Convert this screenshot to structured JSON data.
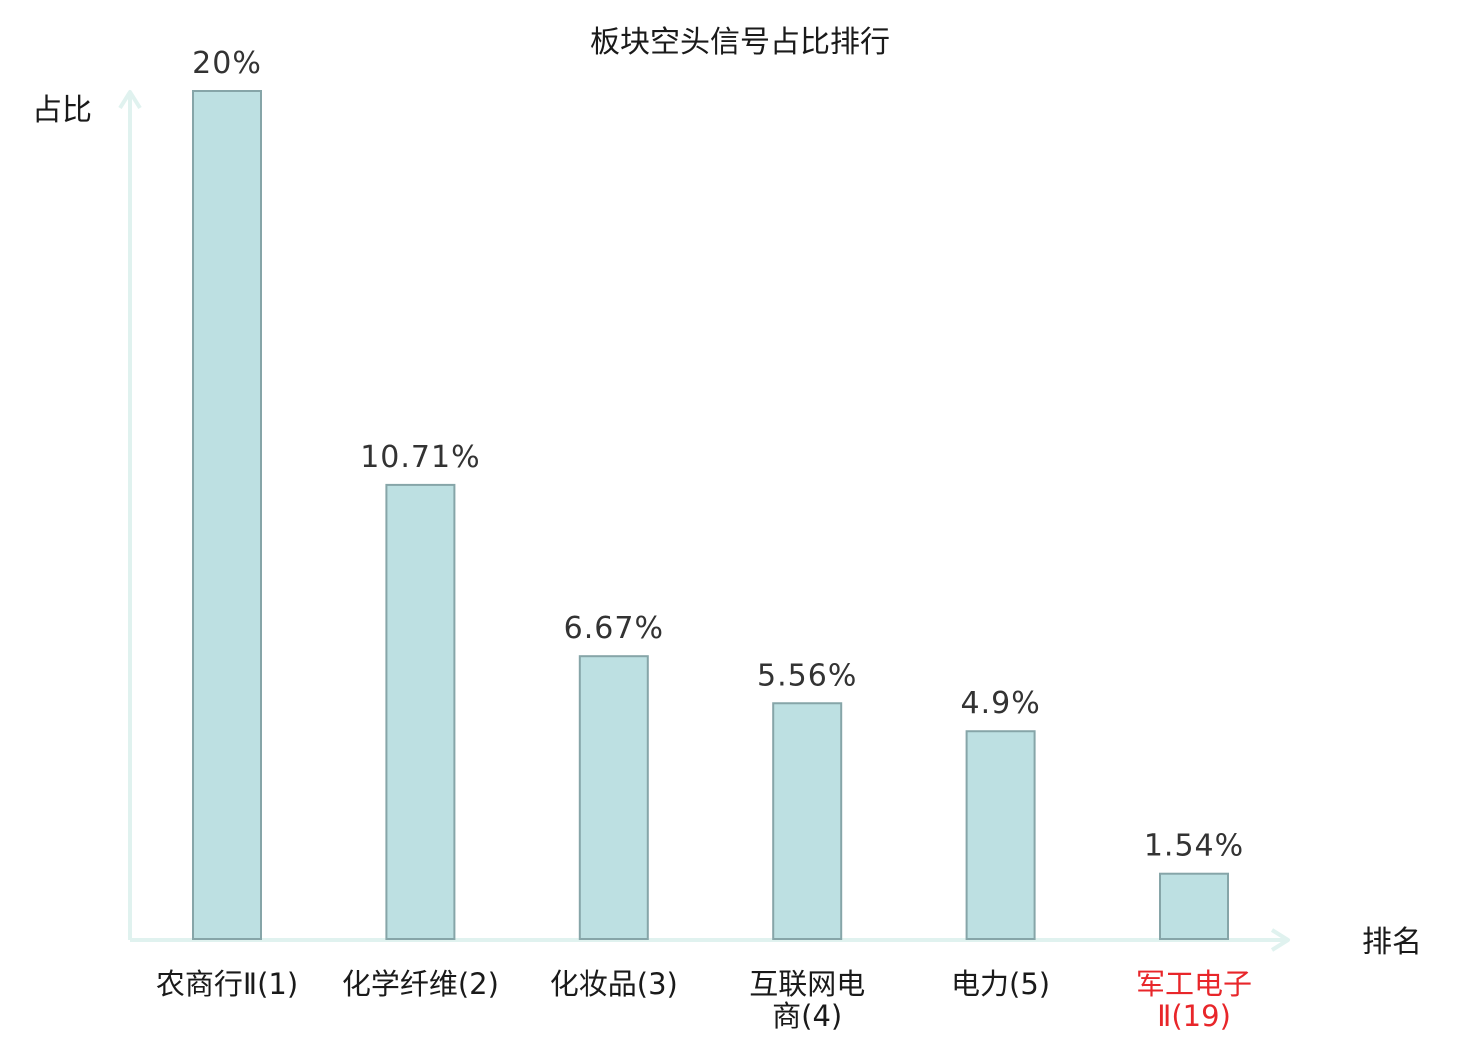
{
  "chart_data": {
    "type": "bar",
    "title": "板块空头信号占比排行",
    "ylabel": "占比",
    "xlabel": "排名",
    "categories": [
      [
        "农商行Ⅱ(1)"
      ],
      [
        "化学纤维(2)"
      ],
      [
        "化妆品(3)"
      ],
      [
        "互联网电",
        "商(4)"
      ],
      [
        "电力(5)"
      ],
      [
        "军工电子",
        "Ⅱ(19)"
      ]
    ],
    "values": [
      20,
      10.71,
      6.67,
      5.56,
      4.9,
      1.54
    ],
    "value_labels": [
      "20%",
      "10.71%",
      "6.67%",
      "5.56%",
      "4.9%",
      "1.54%"
    ],
    "highlight_index": 5,
    "ylim": [
      0,
      20
    ],
    "grid": false,
    "colors": {
      "bar_fill": "#bde0e2",
      "bar_stroke": "#86a5a8",
      "axis": "#e0f2ef",
      "label": "#1a1a1a",
      "highlight": "#e8262a"
    }
  }
}
